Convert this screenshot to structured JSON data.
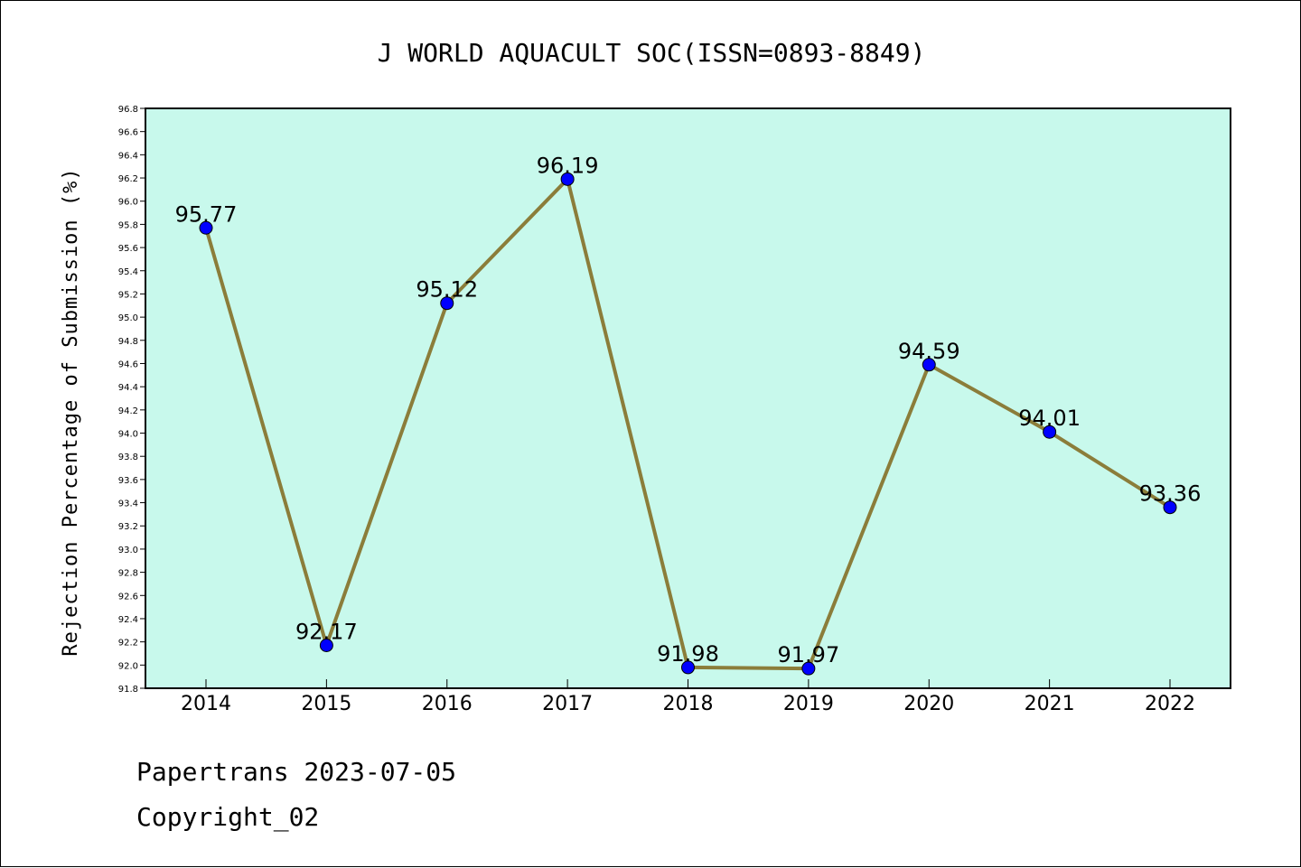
{
  "chart_data": {
    "type": "line",
    "title": "J WORLD AQUACULT SOC(ISSN=0893-8849)",
    "ylabel": "Rejection Percentage of Submission (%)",
    "xlabel": "",
    "categories": [
      "2014",
      "2015",
      "2016",
      "2017",
      "2018",
      "2019",
      "2020",
      "2021",
      "2022"
    ],
    "values": [
      95.77,
      92.17,
      95.12,
      96.19,
      91.98,
      91.97,
      94.59,
      94.01,
      93.36
    ],
    "data_labels": [
      "95.77",
      "92.17",
      "95.12",
      "96.19",
      "91.98",
      "91.97",
      "94.59",
      "94.01",
      "93.36"
    ],
    "ylim": [
      91.8,
      96.8
    ],
    "yticks": [
      "91.8",
      "92.0",
      "92.2",
      "92.4",
      "92.6",
      "92.8",
      "93.0",
      "93.2",
      "93.4",
      "93.6",
      "93.8",
      "94.0",
      "94.2",
      "94.4",
      "94.6",
      "94.8",
      "95.0",
      "95.2",
      "95.4",
      "95.6",
      "95.8",
      "96.0",
      "96.2",
      "96.4",
      "96.6",
      "96.8"
    ],
    "grid": false,
    "colors": {
      "plot_background": "#c8f9ec",
      "line": "#8b7d3a",
      "marker": "#0000ff"
    }
  },
  "footer": {
    "line1": "Papertrans 2023-07-05",
    "line2": "Copyright_02"
  }
}
